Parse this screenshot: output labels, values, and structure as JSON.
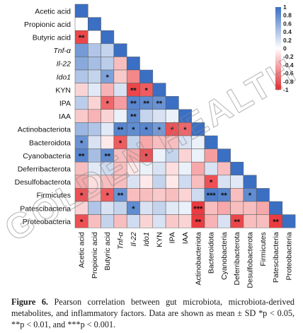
{
  "chart_data": {
    "type": "heatmap",
    "variables": [
      "Acetic acid",
      "Propionic acid",
      "Butyric acid",
      "Tnf-α",
      "Il-22",
      "Ido1",
      "KYN",
      "IPA",
      "IAA",
      "Actinobacteriota",
      "Bacteroidota",
      "Cyanobacteria",
      "Deferribacterota",
      "Desulfobacterota",
      "Firmicutes",
      "Patescibacteria",
      "Proteobacteria"
    ],
    "italic_variables": [
      "Tnf-α",
      "Il-22",
      "Ido1"
    ],
    "values": [
      [
        1
      ],
      [
        0.0,
        1
      ],
      [
        -0.85,
        0.0,
        1
      ],
      [
        0.7,
        0.4,
        0.3,
        1
      ],
      [
        0.6,
        0.45,
        0.35,
        -0.3,
        1
      ],
      [
        0.4,
        0.3,
        0.65,
        -0.25,
        -0.55,
        1
      ],
      [
        -0.2,
        0.15,
        -0.35,
        0.2,
        -0.85,
        -0.75,
        1
      ],
      [
        0.35,
        -0.2,
        -0.7,
        -0.45,
        0.85,
        0.8,
        0.75,
        1
      ],
      [
        -0.25,
        -0.35,
        -0.2,
        0.1,
        0.8,
        0.3,
        0.2,
        0.1,
        1
      ],
      [
        0.5,
        0.4,
        0.15,
        0.85,
        0.8,
        0.85,
        0.7,
        -0.8,
        -0.7,
        1
      ],
      [
        0.75,
        0.2,
        -0.1,
        -0.75,
        0.3,
        -0.4,
        -0.3,
        -0.3,
        0.2,
        0.1,
        1
      ],
      [
        0.85,
        0.45,
        0.8,
        -0.3,
        -0.4,
        -0.8,
        0.1,
        0.3,
        -0.2,
        0.1,
        -0.45,
        1
      ],
      [
        -0.3,
        0.15,
        0.25,
        -0.3,
        -0.1,
        0.1,
        0.2,
        -0.15,
        0.1,
        -0.4,
        0.2,
        -0.3,
        1
      ],
      [
        -0.4,
        -0.15,
        -0.3,
        -0.3,
        0.2,
        -0.1,
        0.3,
        -0.1,
        0.25,
        -0.3,
        -0.8,
        0.2,
        0.15,
        1
      ],
      [
        -0.8,
        -0.3,
        -0.75,
        0.75,
        -0.3,
        -0.3,
        -0.25,
        -0.3,
        -0.2,
        0.25,
        0.9,
        0.85,
        -0.3,
        0.8,
        1
      ],
      [
        -0.2,
        0.4,
        0.2,
        0.3,
        0.8,
        0.2,
        0.3,
        0.15,
        0.1,
        -0.9,
        -0.3,
        -0.4,
        -0.3,
        -0.3,
        -0.4,
        1
      ],
      [
        -0.8,
        -0.3,
        0.3,
        -0.3,
        0.25,
        -0.2,
        0.2,
        -0.25,
        -0.2,
        -0.9,
        -0.35,
        0.2,
        -0.85,
        -0.3,
        -0.3,
        -0.9,
        1
      ]
    ],
    "significance": [
      [
        ""
      ],
      [
        "",
        ""
      ],
      [
        "**",
        "",
        ""
      ],
      [
        "",
        "",
        "",
        ""
      ],
      [
        "",
        "",
        "",
        "",
        ""
      ],
      [
        "",
        "",
        "*",
        "",
        "",
        ""
      ],
      [
        "",
        "",
        "",
        "",
        "**",
        "*",
        ""
      ],
      [
        "",
        "",
        "*",
        "",
        "**",
        "**",
        "**",
        ""
      ],
      [
        "",
        "",
        "",
        "",
        "**",
        "",
        "",
        "",
        ""
      ],
      [
        "",
        "",
        "",
        "**",
        "*",
        "*",
        "*",
        "*",
        "*",
        ""
      ],
      [
        "*",
        "",
        "",
        "*",
        "",
        "",
        "",
        "",
        "",
        "",
        ""
      ],
      [
        "**",
        "",
        "**",
        "",
        "",
        "*",
        "",
        "",
        "",
        "",
        "",
        ""
      ],
      [
        "",
        "",
        "",
        "",
        "",
        "",
        "",
        "",
        "",
        "",
        "",
        "",
        ""
      ],
      [
        "",
        "",
        "",
        "",
        "",
        "",
        "",
        "",
        "",
        "",
        "*",
        "",
        "",
        ""
      ],
      [
        "*",
        "",
        "*",
        "**",
        "",
        "",
        "",
        "",
        "",
        "",
        "***",
        "**",
        "",
        "*",
        ""
      ],
      [
        "",
        "",
        "",
        "",
        "*",
        "",
        "",
        "",
        "",
        "***",
        "",
        "",
        "",
        "",
        "",
        ""
      ],
      [
        "*",
        "",
        "",
        "",
        "",
        "",
        "",
        "",
        "",
        "**",
        "",
        "",
        "**",
        "",
        "",
        "**",
        ""
      ]
    ],
    "colorbar": {
      "range": [
        -1,
        1
      ],
      "ticks": [
        "1",
        "0.8",
        "0.6",
        "0.4",
        "0.2",
        "0",
        "-0.2",
        "-0.4",
        "-0.6",
        "-0.8",
        "-1"
      ],
      "positive_color": "#3a6fc4",
      "negative_color": "#e8262b",
      "neutral_color": "#ffffff"
    }
  },
  "watermark": "GOLDEN HEALTH",
  "caption": {
    "label": "Figure 6.",
    "text": " Pearson correlation between gut microbiota, microbiota-derived metabolites, and inflammatory factors. Data are shown as mean ± SD *p < 0.05, **p < 0.01, and ***p < 0.001."
  }
}
